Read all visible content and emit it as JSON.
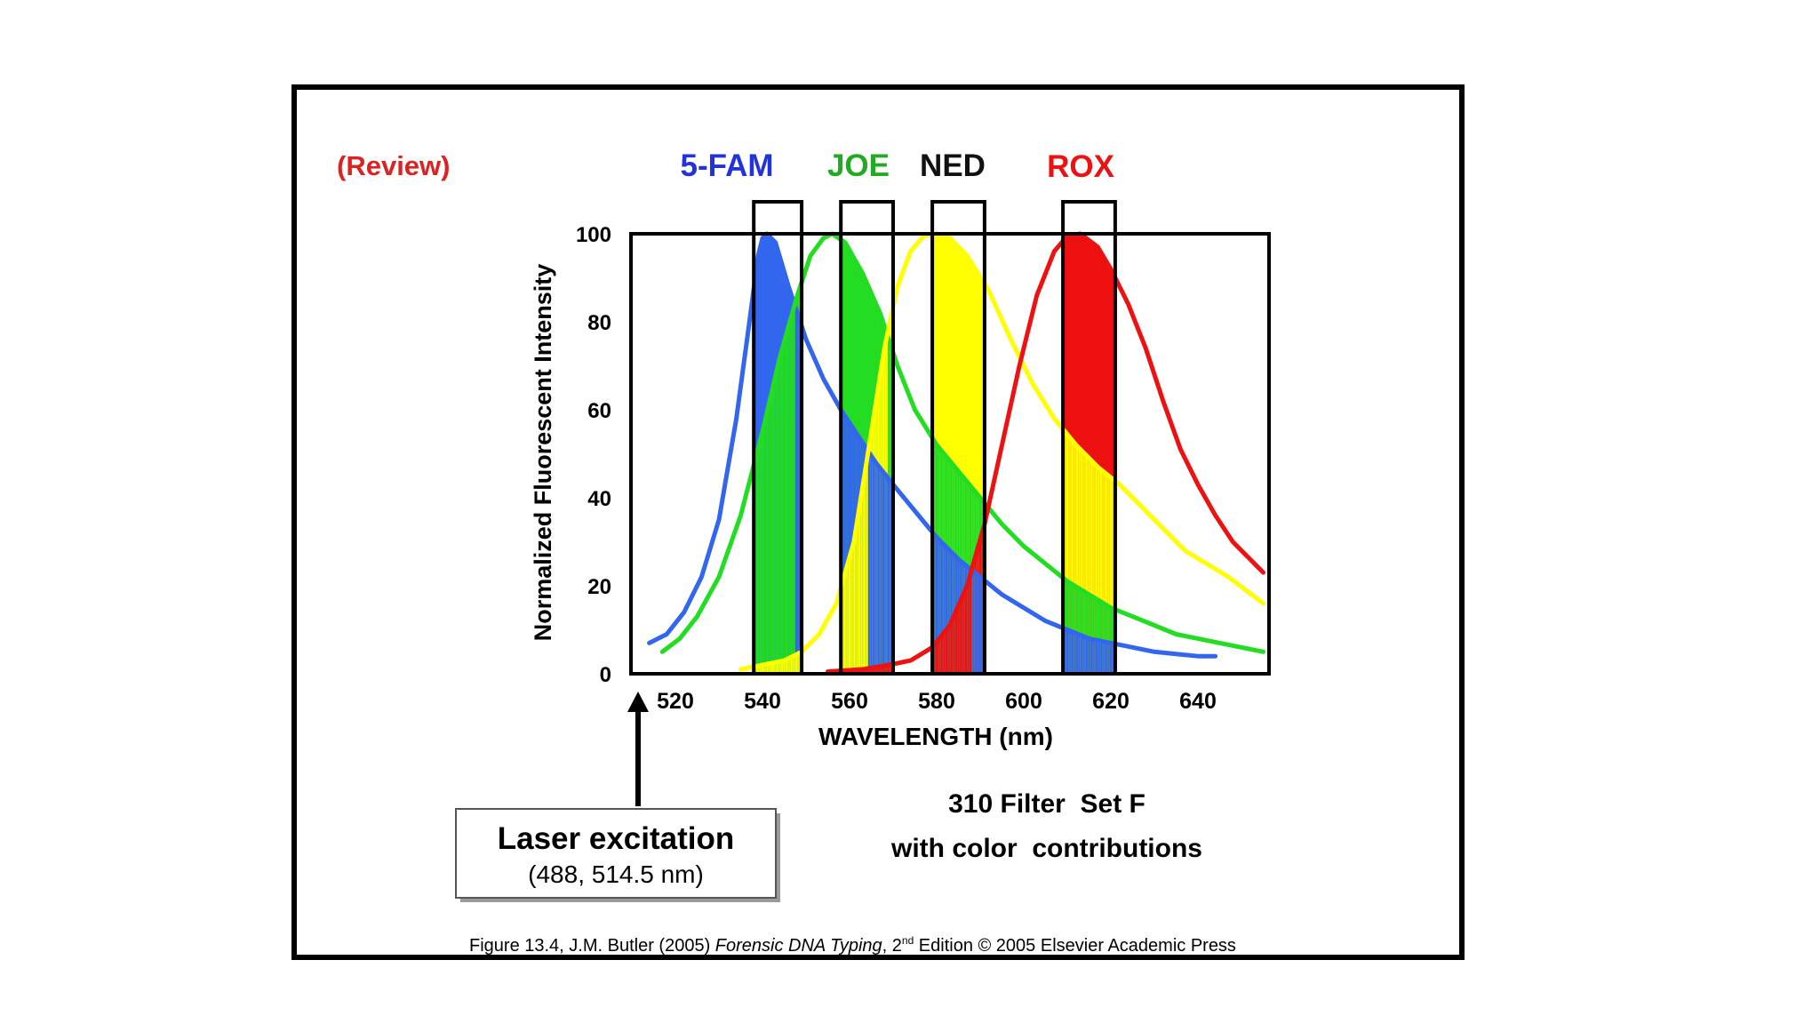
{
  "review_label": "(Review)",
  "dye_labels": [
    {
      "text": "5-FAM",
      "color": "#2233dd"
    },
    {
      "text": "JOE",
      "color": "#22aa22"
    },
    {
      "text": "NED",
      "color": "#111111"
    },
    {
      "text": "ROX",
      "color": "#ee1111"
    }
  ],
  "laser": {
    "title": "Laser excitation",
    "subtitle": "(488, 514.5 nm)"
  },
  "filter_caption": {
    "line1": "310 Filter  Set F",
    "line2": "with color  contributions"
  },
  "citation": {
    "prefix": "Figure 13.4, J.M. Butler (2005) ",
    "book": "Forensic DNA Typing",
    "edition_num": ", 2",
    "edition_sup": "nd",
    "suffix": " Edition © 2005 Elsevier Academic Press"
  },
  "chart_data": {
    "type": "line",
    "title": "",
    "xlabel": "WAVELENGTH (nm)",
    "ylabel": "Normalized Fluorescent Intensity",
    "xlim": [
      510,
      655
    ],
    "ylim": [
      0,
      100
    ],
    "xticks": [
      520,
      540,
      560,
      580,
      600,
      620,
      640
    ],
    "yticks": [
      0,
      20,
      40,
      60,
      80,
      100
    ],
    "series": [
      {
        "name": "5-FAM",
        "color": "#3366ee",
        "points": [
          [
            514,
            7
          ],
          [
            518,
            9
          ],
          [
            522,
            14
          ],
          [
            526,
            22
          ],
          [
            530,
            35
          ],
          [
            534,
            58
          ],
          [
            537,
            80
          ],
          [
            539,
            95
          ],
          [
            540,
            99
          ],
          [
            541,
            100
          ],
          [
            543,
            98
          ],
          [
            546,
            88
          ],
          [
            550,
            76
          ],
          [
            554,
            67
          ],
          [
            558,
            60
          ],
          [
            562,
            54
          ],
          [
            566,
            48
          ],
          [
            570,
            43
          ],
          [
            575,
            37
          ],
          [
            580,
            31
          ],
          [
            585,
            26
          ],
          [
            590,
            22
          ],
          [
            595,
            18
          ],
          [
            600,
            15
          ],
          [
            605,
            12
          ],
          [
            610,
            10
          ],
          [
            615,
            8
          ],
          [
            620,
            7
          ],
          [
            625,
            6
          ],
          [
            630,
            5
          ],
          [
            635,
            4.5
          ],
          [
            640,
            4
          ],
          [
            644,
            4
          ]
        ]
      },
      {
        "name": "JOE",
        "color": "#22dd22",
        "points": [
          [
            517,
            5
          ],
          [
            521,
            8
          ],
          [
            525,
            13
          ],
          [
            530,
            22
          ],
          [
            535,
            36
          ],
          [
            540,
            55
          ],
          [
            544,
            72
          ],
          [
            548,
            86
          ],
          [
            551,
            95
          ],
          [
            554,
            99
          ],
          [
            556,
            100
          ],
          [
            559,
            98
          ],
          [
            563,
            91
          ],
          [
            567,
            82
          ],
          [
            571,
            70
          ],
          [
            575,
            60
          ],
          [
            580,
            52
          ],
          [
            585,
            46
          ],
          [
            590,
            40
          ],
          [
            595,
            34
          ],
          [
            600,
            29
          ],
          [
            605,
            25
          ],
          [
            610,
            21
          ],
          [
            615,
            18
          ],
          [
            620,
            15
          ],
          [
            625,
            13
          ],
          [
            630,
            11
          ],
          [
            635,
            9
          ],
          [
            640,
            8
          ],
          [
            645,
            7
          ],
          [
            650,
            6
          ],
          [
            655,
            5
          ]
        ]
      },
      {
        "name": "NED",
        "color": "#ffff00",
        "points": [
          [
            535,
            1
          ],
          [
            540,
            2
          ],
          [
            545,
            3
          ],
          [
            549,
            5
          ],
          [
            553,
            9
          ],
          [
            557,
            16
          ],
          [
            561,
            30
          ],
          [
            565,
            55
          ],
          [
            568,
            74
          ],
          [
            571,
            88
          ],
          [
            574,
            96
          ],
          [
            577,
            99.5
          ],
          [
            580,
            100
          ],
          [
            583,
            99
          ],
          [
            587,
            95
          ],
          [
            592,
            87
          ],
          [
            597,
            76
          ],
          [
            602,
            66
          ],
          [
            607,
            58
          ],
          [
            612,
            52
          ],
          [
            617,
            47
          ],
          [
            622,
            43
          ],
          [
            627,
            38
          ],
          [
            632,
            33
          ],
          [
            637,
            28
          ],
          [
            642,
            25
          ],
          [
            647,
            22
          ],
          [
            651,
            19
          ],
          [
            655,
            16
          ]
        ]
      },
      {
        "name": "ROX",
        "color": "#ee1111",
        "points": [
          [
            555,
            0.5
          ],
          [
            563,
            1
          ],
          [
            569,
            2
          ],
          [
            574,
            3
          ],
          [
            579,
            6
          ],
          [
            583,
            11
          ],
          [
            587,
            20
          ],
          [
            591,
            34
          ],
          [
            595,
            52
          ],
          [
            599,
            70
          ],
          [
            603,
            86
          ],
          [
            607,
            96
          ],
          [
            610,
            99.5
          ],
          [
            613,
            100
          ],
          [
            617,
            97
          ],
          [
            620,
            92
          ],
          [
            624,
            84
          ],
          [
            628,
            74
          ],
          [
            632,
            62
          ],
          [
            636,
            51
          ],
          [
            640,
            43
          ],
          [
            644,
            36
          ],
          [
            648,
            30
          ],
          [
            652,
            26
          ],
          [
            655,
            23
          ]
        ]
      }
    ],
    "filter_windows": [
      {
        "name": "5-FAM",
        "range": [
          538,
          549
        ],
        "fill": "#3366ee"
      },
      {
        "name": "JOE",
        "range": [
          558,
          570
        ],
        "fill": "#22dd22"
      },
      {
        "name": "NED",
        "range": [
          579,
          591
        ],
        "fill": "#ffff00"
      },
      {
        "name": "ROX",
        "range": [
          609,
          621
        ],
        "fill": "#ee1111"
      }
    ]
  }
}
